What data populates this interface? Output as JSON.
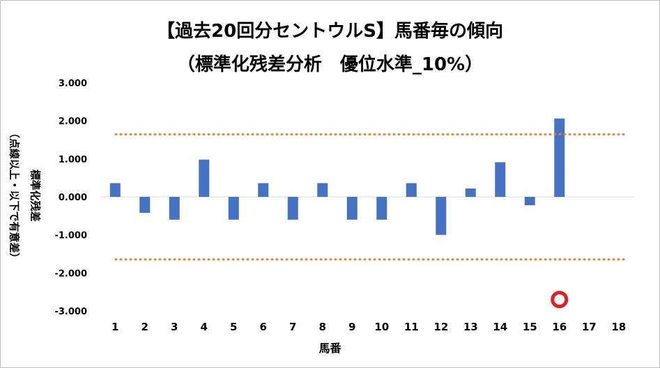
{
  "chart_data": {
    "type": "bar",
    "title": "【過去20回分セントウルS】馬番毎の傾向",
    "subtitle": "（標準化残差分析　優位水準_10%）",
    "xlabel": "馬番",
    "ylabel": "標準化残差",
    "ylabel_note": "（点線以上・以下で有意差）",
    "categories": [
      "1",
      "2",
      "3",
      "4",
      "5",
      "6",
      "7",
      "8",
      "9",
      "10",
      "11",
      "12",
      "13",
      "14",
      "15",
      "16",
      "17",
      "18"
    ],
    "values": [
      0.36,
      -0.42,
      -0.6,
      0.98,
      -0.6,
      0.36,
      -0.6,
      0.36,
      -0.6,
      -0.6,
      0.36,
      -1.0,
      0.22,
      0.91,
      -0.22,
      2.06,
      null,
      null
    ],
    "ylim": [
      -3.0,
      3.0
    ],
    "yticks": [
      3.0,
      2.0,
      1.0,
      0.0,
      -1.0,
      -2.0,
      -3.0
    ],
    "ytick_labels": [
      "3.000",
      "2.000",
      "1.000",
      "0.000",
      "-1.000",
      "-2.000",
      "-3.000"
    ],
    "threshold_upper": 1.645,
    "threshold_lower": -1.645,
    "marker": {
      "category": "16",
      "value": -2.7,
      "shape": "circle",
      "meaning": "significant"
    },
    "bar_color": "#4472c4",
    "threshold_color": "#ed7d31",
    "marker_color": "#e02020",
    "grid": false,
    "legend": "none"
  }
}
